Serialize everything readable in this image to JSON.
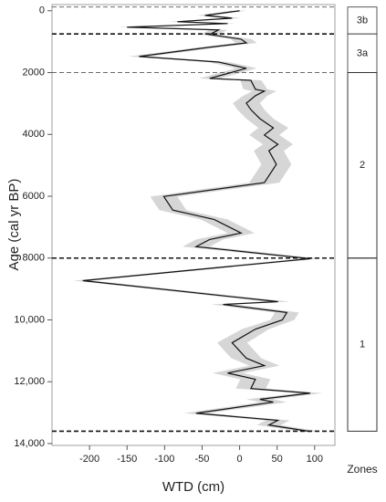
{
  "chart_data": {
    "type": "profile",
    "x_label": "WTD (cm)",
    "y_label": "Age (cal yr BP)",
    "zones_label": "Zones",
    "xlim": [
      -250,
      127
    ],
    "xticks": [
      -200,
      -150,
      -100,
      -50,
      0,
      50,
      100
    ],
    "ylim": [
      14060,
      -200
    ],
    "yticks": [
      0,
      2000,
      4000,
      6000,
      8000,
      {
        "value": 10000,
        "label": "10,000"
      },
      {
        "value": 12000,
        "label": "12,000"
      },
      {
        "value": 14000,
        "label": "14,000"
      }
    ],
    "line_color": "#111",
    "band_color": "#d6d6d6",
    "series": [
      {
        "age": [
          0,
          150,
          240,
          355,
          415,
          530,
          620,
          770,
          920,
          1040,
          1180,
          1480,
          1660,
          1860,
          2070,
          2190,
          2250,
          2540,
          2600,
          2750,
          2990,
          3200,
          3490,
          3790,
          4020,
          4320,
          4530,
          4970,
          5560,
          6010,
          6450,
          6750,
          7190,
          7400,
          7630,
          8020,
          8730,
          9410,
          9500,
          9760,
          10000,
          10300,
          10740,
          11240,
          11480,
          11720,
          11920,
          12220,
          12370,
          12570,
          12660,
          13020,
          13250,
          13400,
          13610
        ],
        "wtd": [
          0,
          -46,
          -10,
          -83,
          -16,
          -150,
          -28,
          -40,
          2,
          9,
          -40,
          -134,
          -28,
          9,
          -22,
          -40,
          15,
          21,
          33,
          21,
          9,
          15,
          27,
          45,
          33,
          51,
          39,
          49,
          33,
          -101,
          -89,
          -34,
          2,
          -40,
          -58,
          94,
          -209,
          51,
          -22,
          63,
          57,
          21,
          -10,
          9,
          33,
          -16,
          21,
          15,
          94,
          27,
          45,
          -58,
          51,
          39,
          94
        ],
        "lower": [
          -10,
          -56,
          -22,
          -95,
          -28,
          -162,
          -40,
          -52,
          -12,
          -5,
          -54,
          -148,
          -42,
          -5,
          -36,
          -54,
          1,
          5,
          17,
          5,
          -9,
          -3,
          9,
          25,
          13,
          31,
          19,
          29,
          13,
          -119,
          -107,
          -52,
          -16,
          -58,
          -76,
          80,
          -221,
          35,
          -38,
          47,
          41,
          3,
          -30,
          -11,
          13,
          -36,
          1,
          -5,
          78,
          9,
          27,
          -74,
          35,
          23,
          80
        ],
        "upper": [
          10,
          -36,
          2,
          -71,
          -4,
          -138,
          -16,
          -28,
          16,
          23,
          -26,
          -120,
          -14,
          23,
          -8,
          -26,
          29,
          37,
          49,
          37,
          27,
          33,
          45,
          65,
          53,
          71,
          59,
          69,
          53,
          -83,
          -71,
          -16,
          20,
          -22,
          -40,
          108,
          -197,
          67,
          -6,
          79,
          73,
          39,
          10,
          29,
          53,
          4,
          41,
          35,
          110,
          45,
          63,
          -42,
          67,
          55,
          108
        ]
      }
    ],
    "boundaries": [
      -120,
      750,
      2000,
      8000,
      13600
    ],
    "boundary_weight": [
      1,
      2,
      1,
      2,
      2
    ],
    "zones": [
      {
        "label": "3b",
        "from": -120,
        "to": 750
      },
      {
        "label": "3a",
        "from": 750,
        "to": 2000
      },
      {
        "label": "2",
        "from": 2000,
        "to": 8000
      },
      {
        "label": "1",
        "from": 8000,
        "to": 13600
      }
    ]
  }
}
